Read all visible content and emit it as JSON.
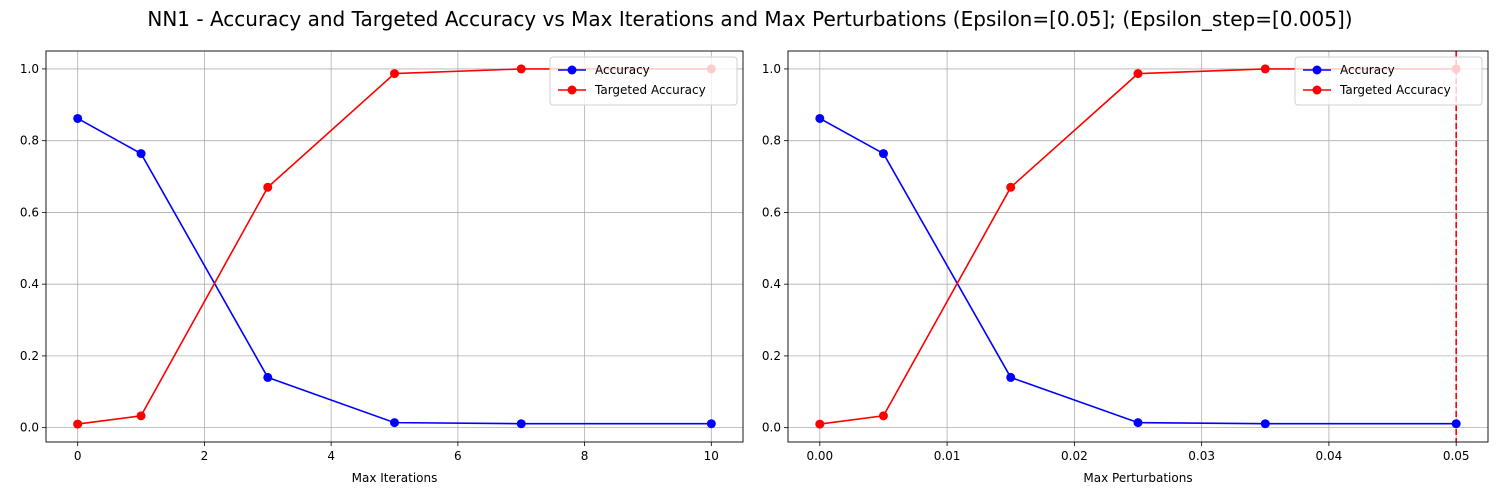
{
  "figure": {
    "title": "NN1 - Accuracy and Targeted Accuracy vs Max Iterations and Max Perturbations (Epsilon=[0.05]; (Epsilon_step=[0.005])"
  },
  "chart_data": [
    {
      "type": "line",
      "xlabel": "Max Iterations",
      "ylabel": "",
      "x": [
        0,
        1,
        3,
        5,
        7,
        10
      ],
      "xlim": [
        -0.5,
        10.5
      ],
      "ylim": [
        -0.04,
        1.05
      ],
      "xticks": [
        0,
        2,
        4,
        6,
        8,
        10
      ],
      "xtick_labels": [
        "0",
        "2",
        "4",
        "6",
        "8",
        "10"
      ],
      "yticks": [
        0.0,
        0.2,
        0.4,
        0.6,
        0.8,
        1.0
      ],
      "ytick_labels": [
        "0.0",
        "0.2",
        "0.4",
        "0.6",
        "0.8",
        "1.0"
      ],
      "grid": true,
      "legend_position": "top-right",
      "series": [
        {
          "name": "Accuracy",
          "color": "#0000ff",
          "values": [
            0.862,
            0.764,
            0.14,
            0.014,
            0.011,
            0.011
          ]
        },
        {
          "name": "Targeted Accuracy",
          "color": "#ff0000",
          "values": [
            0.01,
            0.033,
            0.67,
            0.987,
            1.0,
            1.0
          ]
        }
      ],
      "vlines": []
    },
    {
      "type": "line",
      "xlabel": "Max Perturbations",
      "ylabel": "",
      "x": [
        0.0,
        0.005,
        0.015,
        0.025,
        0.035,
        0.05
      ],
      "xlim": [
        -0.0025,
        0.0525
      ],
      "ylim": [
        -0.04,
        1.05
      ],
      "xticks": [
        0.0,
        0.01,
        0.02,
        0.03,
        0.04,
        0.05
      ],
      "xtick_labels": [
        "0.00",
        "0.01",
        "0.02",
        "0.03",
        "0.04",
        "0.05"
      ],
      "yticks": [
        0.0,
        0.2,
        0.4,
        0.6,
        0.8,
        1.0
      ],
      "ytick_labels": [
        "0.0",
        "0.2",
        "0.4",
        "0.6",
        "0.8",
        "1.0"
      ],
      "grid": true,
      "legend_position": "top-right",
      "series": [
        {
          "name": "Accuracy",
          "color": "#0000ff",
          "values": [
            0.862,
            0.764,
            0.14,
            0.014,
            0.011,
            0.011
          ]
        },
        {
          "name": "Targeted Accuracy",
          "color": "#ff0000",
          "values": [
            0.01,
            0.033,
            0.67,
            0.987,
            1.0,
            1.0
          ]
        }
      ],
      "vlines": [
        {
          "x": 0.05,
          "color": "#ff0000",
          "style": "dashed"
        }
      ]
    }
  ]
}
